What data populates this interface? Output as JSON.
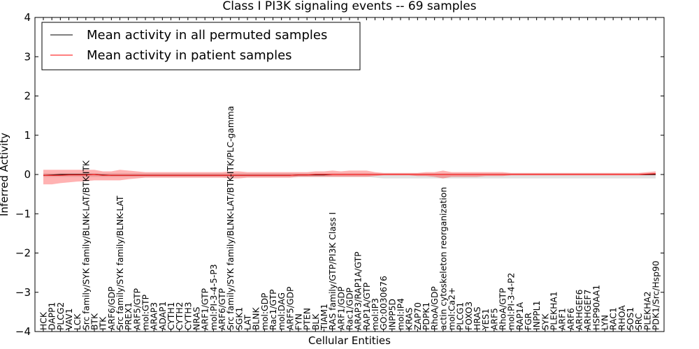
{
  "chart_data": {
    "type": "line",
    "title": "Class I PI3K signaling events -- 69 samples",
    "xlabel": "Cellular Entities",
    "ylabel": "Inferred Activity",
    "ylim": [
      -4,
      4
    ],
    "yticks": [
      -4,
      -3,
      -2,
      -1,
      0,
      1,
      2,
      3,
      4
    ],
    "ytick_labels": [
      "−4",
      "−3",
      "−2",
      "−1",
      "0",
      "1",
      "2",
      "3",
      "4"
    ],
    "grid": false,
    "legend": {
      "position": "top-left",
      "entries": [
        {
          "label": "Mean activity in all permuted samples",
          "color": "#000000"
        },
        {
          "label": "Mean activity in patient samples",
          "color": "#ff0000"
        }
      ]
    },
    "categories": [
      "HCK",
      "DAPP1",
      "PLCG2",
      "VAV1",
      "LCK",
      "Src family/SYK family/BLNK-LAT/BTK-ITK",
      "BTK",
      "ITK",
      "ARF6/GDP",
      "Src family/SYK family/BLNK-LAT",
      "PREX1",
      "ARF5/GTP",
      "mol:GTP",
      "ARAP3",
      "ADAP1",
      "CYTH1",
      "CYTH2",
      "CYTH3",
      "NRAS",
      "ARF1/GTP",
      "mol:PI-3-4-5-P3",
      "ARF6/GTP",
      "Src family/SYK family/BLNK-LAT/BTK-ITK/PLC-gamma",
      "SGK1",
      "LAT",
      "BLNK",
      "mol:GDP",
      "Rac1/GTP",
      "mol:DAG",
      "ARF5/GDP",
      "FYN",
      "PTEN",
      "BLK",
      "TIAM1",
      "RAS family/GTP/PI3K Class I",
      "ARF1/GDP",
      "Rac1/GDP",
      "ARAP3/RAP1A/GTP",
      "RAP1A/GTP",
      "mol:IP3",
      "GO:0030676",
      "INPP5D",
      "mol:IP4",
      "KRAS",
      "ZAP70",
      "PDPK1",
      "RhoA/GDP",
      "actin cytoskeleton reorganization",
      "mol:Ca2+",
      "PLCG1",
      "FOXO3",
      "HRAS",
      "YES1",
      "ARF5",
      "RhoA/GTP",
      "mol:PI-3-4-P2",
      "RAP1A",
      "FGR",
      "INPPL1",
      "SYK",
      "PLEKHA1",
      "ARF1",
      "ARF6",
      "ARHGEF6",
      "ARHGEF7",
      "HSP90AA1",
      "LYN",
      "RAC1",
      "RHOA",
      "SOS1",
      "SRC",
      "PLEKHA2",
      "PDK1/Src/Hsp90"
    ],
    "series": [
      {
        "name": "Mean activity in patient samples",
        "color": "#ff0000",
        "values": [
          -0.02,
          -0.02,
          -0.02,
          -0.01,
          -0.01,
          -0.01,
          0.0,
          -0.02,
          -0.02,
          -0.02,
          -0.02,
          -0.02,
          -0.02,
          -0.02,
          -0.02,
          -0.02,
          -0.02,
          -0.02,
          -0.02,
          -0.02,
          -0.02,
          -0.02,
          -0.02,
          -0.02,
          -0.02,
          -0.02,
          -0.02,
          -0.02,
          -0.02,
          -0.02,
          -0.01,
          -0.01,
          0.0,
          0.0,
          0.0,
          0.0,
          0.0,
          0.0,
          0.0,
          0.0,
          0.0,
          0.0,
          0.0,
          0.0,
          0.0,
          0.0,
          0.0,
          0.0,
          0.0,
          0.0,
          0.0,
          0.0,
          0.0,
          0.0,
          0.0,
          0.0,
          0.0,
          0.0,
          0.0,
          0.0,
          0.0,
          0.0,
          0.0,
          0.0,
          0.0,
          0.0,
          0.0,
          0.0,
          0.0,
          0.0,
          0.0,
          0.01,
          0.02
        ],
        "upper": [
          0.12,
          0.12,
          0.12,
          0.12,
          0.12,
          0.12,
          0.12,
          0.08,
          0.08,
          0.12,
          0.1,
          0.08,
          0.06,
          0.06,
          0.06,
          0.06,
          0.06,
          0.06,
          0.06,
          0.06,
          0.06,
          0.06,
          0.08,
          0.08,
          0.06,
          0.06,
          0.06,
          0.06,
          0.06,
          0.06,
          0.06,
          0.06,
          0.08,
          0.08,
          0.1,
          0.08,
          0.1,
          0.1,
          0.1,
          0.06,
          0.04,
          0.04,
          0.04,
          0.04,
          0.04,
          0.06,
          0.06,
          0.1,
          0.06,
          0.06,
          0.06,
          0.06,
          0.06,
          0.06,
          0.06,
          0.04,
          0.04,
          0.04,
          0.04,
          0.04,
          0.04,
          0.04,
          0.04,
          0.04,
          0.04,
          0.04,
          0.04,
          0.04,
          0.04,
          0.04,
          0.04,
          0.06,
          0.08
        ],
        "lower": [
          -0.25,
          -0.25,
          -0.22,
          -0.2,
          -0.18,
          -0.17,
          -0.15,
          -0.15,
          -0.15,
          -0.15,
          -0.12,
          -0.1,
          -0.08,
          -0.08,
          -0.08,
          -0.08,
          -0.08,
          -0.08,
          -0.08,
          -0.08,
          -0.08,
          -0.08,
          -0.1,
          -0.1,
          -0.08,
          -0.08,
          -0.08,
          -0.08,
          -0.08,
          -0.08,
          -0.06,
          -0.06,
          -0.06,
          -0.06,
          -0.06,
          -0.06,
          -0.06,
          -0.06,
          -0.06,
          -0.04,
          -0.02,
          -0.02,
          -0.02,
          -0.02,
          -0.04,
          -0.04,
          -0.06,
          -0.1,
          -0.06,
          -0.06,
          -0.06,
          -0.06,
          -0.04,
          -0.04,
          -0.04,
          -0.02,
          -0.02,
          -0.02,
          -0.02,
          -0.02,
          -0.02,
          -0.02,
          -0.02,
          -0.02,
          -0.02,
          -0.02,
          -0.02,
          -0.02,
          -0.02,
          -0.02,
          -0.02,
          -0.02,
          -0.02
        ]
      },
      {
        "name": "Mean activity in all permuted samples",
        "color": "#000000",
        "values": [
          -0.02,
          -0.01,
          0.0,
          0.0,
          0.0,
          0.0,
          0.0,
          -0.01,
          -0.02,
          -0.02,
          -0.02,
          -0.02,
          -0.02,
          -0.02,
          -0.02,
          -0.02,
          -0.02,
          -0.02,
          -0.02,
          -0.02,
          -0.02,
          -0.02,
          -0.02,
          -0.02,
          -0.02,
          -0.02,
          -0.02,
          -0.02,
          -0.02,
          -0.02,
          -0.01,
          -0.01,
          -0.01,
          -0.01,
          0.0,
          0.0,
          0.0,
          0.0,
          0.0,
          0.0,
          0.0,
          0.0,
          0.0,
          0.0,
          0.0,
          0.0,
          0.0,
          0.0,
          0.0,
          0.0,
          0.0,
          0.0,
          0.0,
          0.0,
          0.0,
          0.0,
          0.0,
          0.0,
          0.0,
          0.0,
          0.0,
          0.0,
          0.0,
          0.0,
          0.0,
          0.0,
          0.0,
          0.0,
          0.0,
          0.0,
          0.0,
          0.0,
          0.0
        ],
        "upper": [
          0.03,
          0.03,
          0.03,
          0.03,
          0.03,
          0.03,
          0.03,
          0.03,
          0.03,
          0.03,
          0.03,
          0.03,
          0.03,
          0.03,
          0.03,
          0.03,
          0.03,
          0.03,
          0.03,
          0.03,
          0.03,
          0.03,
          0.03,
          0.03,
          0.03,
          0.03,
          0.03,
          0.03,
          0.03,
          0.03,
          0.03,
          0.03,
          0.03,
          0.03,
          0.03,
          0.03,
          0.03,
          0.03,
          0.03,
          0.03,
          0.03,
          0.03,
          0.03,
          0.03,
          0.03,
          0.03,
          0.03,
          0.03,
          0.03,
          0.03,
          0.03,
          0.03,
          0.03,
          0.03,
          0.03,
          0.03,
          0.03,
          0.03,
          0.03,
          0.03,
          0.03,
          0.03,
          0.03,
          0.03,
          0.03,
          0.03,
          0.03,
          0.03,
          0.03,
          0.03,
          0.03,
          0.03,
          0.03
        ],
        "lower": [
          -0.06,
          -0.06,
          -0.06,
          -0.06,
          -0.06,
          -0.06,
          -0.06,
          -0.06,
          -0.06,
          -0.06,
          -0.06,
          -0.06,
          -0.06,
          -0.06,
          -0.06,
          -0.06,
          -0.06,
          -0.06,
          -0.06,
          -0.06,
          -0.06,
          -0.06,
          -0.06,
          -0.06,
          -0.06,
          -0.06,
          -0.06,
          -0.06,
          -0.06,
          -0.06,
          -0.06,
          -0.06,
          -0.06,
          -0.06,
          -0.06,
          -0.06,
          -0.06,
          -0.06,
          -0.06,
          -0.08,
          -0.1,
          -0.1,
          -0.1,
          -0.1,
          -0.1,
          -0.1,
          -0.1,
          -0.1,
          -0.1,
          -0.1,
          -0.1,
          -0.1,
          -0.1,
          -0.1,
          -0.1,
          -0.1,
          -0.1,
          -0.1,
          -0.1,
          -0.1,
          -0.1,
          -0.1,
          -0.1,
          -0.1,
          -0.1,
          -0.1,
          -0.1,
          -0.1,
          -0.1,
          -0.1,
          -0.1,
          -0.1,
          -0.1
        ]
      }
    ]
  }
}
